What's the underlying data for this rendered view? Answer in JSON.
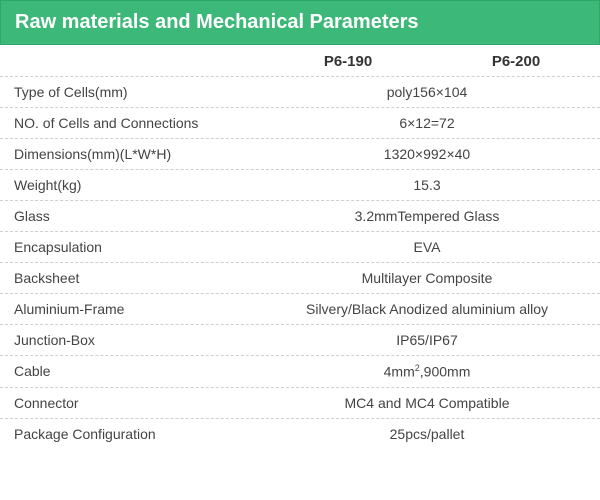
{
  "header": {
    "title": "Raw materials and Mechanical Parameters",
    "bg_color": "#3cb878",
    "text_color": "#ffffff",
    "font_size": 20
  },
  "columns": [
    "P6-190",
    "P6-200"
  ],
  "rows": [
    {
      "label": "Type of Cells(mm)",
      "value": "poly156×104"
    },
    {
      "label": "NO. of Cells and Connections",
      "value": "6×12=72"
    },
    {
      "label": "Dimensions(mm)(L*W*H)",
      "value": "1320×992×40"
    },
    {
      "label": "Weight(kg)",
      "value": "15.3"
    },
    {
      "label": "Glass",
      "value": "3.2mmTempered Glass"
    },
    {
      "label": "Encapsulation",
      "value": "EVA"
    },
    {
      "label": "Backsheet",
      "value": "Multilayer Composite"
    },
    {
      "label": "Aluminium-Frame",
      "value": "Silvery/Black Anodized aluminium alloy"
    },
    {
      "label": "Junction-Box",
      "value": "IP65/IP67"
    },
    {
      "label": "Cable",
      "value_html": "4mm<sup>2</sup>,900mm"
    },
    {
      "label": "Connector",
      "value": "MC4 and MC4 Compatible"
    },
    {
      "label": "Package Configuration",
      "value": "25pcs/pallet"
    }
  ],
  "style": {
    "divider_color": "#cfcfcf",
    "text_color": "#444444",
    "label_fontsize": 14,
    "col_header_fontsize": 15
  }
}
